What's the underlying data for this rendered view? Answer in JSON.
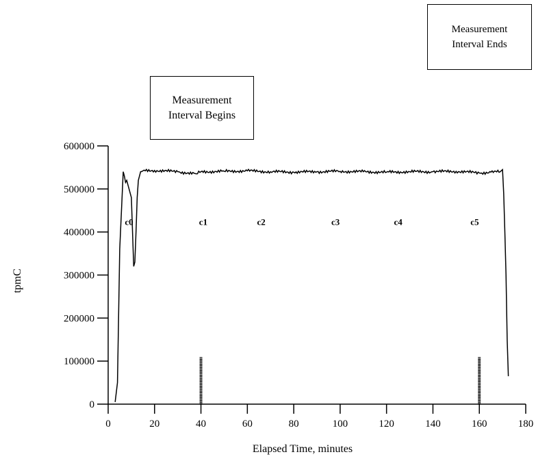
{
  "chart_data": {
    "type": "line",
    "xlabel": "Elapsed Time, minutes",
    "ylabel": "tpmC",
    "xlim": [
      0,
      180
    ],
    "ylim": [
      0,
      600000
    ],
    "x_ticks": [
      "0",
      "20",
      "40",
      "60",
      "80",
      "100",
      "120",
      "140",
      "160",
      "180"
    ],
    "y_ticks": [
      "0",
      "100000",
      "200000",
      "300000",
      "400000",
      "500000",
      "600000"
    ],
    "grid": false,
    "legend": "none",
    "series": [
      {
        "x": [
          3,
          4,
          5,
          6,
          6.5,
          7,
          7.5,
          8,
          8.5,
          9,
          10,
          11,
          11.5,
          12,
          12.5,
          13,
          14,
          15,
          20,
          30,
          38,
          40,
          50,
          60,
          70,
          80,
          90,
          100,
          110,
          120,
          130,
          140,
          150,
          158,
          160,
          165,
          169,
          170,
          170.5,
          171,
          171.5,
          172,
          172.5
        ],
        "y": [
          5000,
          50000,
          360000,
          480000,
          540000,
          530000,
          515000,
          520000,
          510000,
          500000,
          480000,
          320000,
          330000,
          400000,
          480000,
          520000,
          540000,
          542000,
          543000,
          540000,
          535000,
          540000,
          541000,
          542000,
          540000,
          539000,
          540000,
          541000,
          540000,
          539000,
          540000,
          540000,
          541000,
          538000,
          537000,
          539000,
          540000,
          545000,
          490000,
          400000,
          300000,
          150000,
          65000
        ]
      }
    ],
    "checkpoint_labels": [
      {
        "label": "c0",
        "x": 9
      },
      {
        "label": "c1",
        "x": 41
      },
      {
        "label": "c2",
        "x": 66
      },
      {
        "label": "c3",
        "x": 98
      },
      {
        "label": "c4",
        "x": 125
      },
      {
        "label": "c5",
        "x": 158
      }
    ],
    "checkpoint_label_y": 410000,
    "markers": [
      {
        "x": 40,
        "value": 110000
      },
      {
        "x": 160,
        "value": 110000
      }
    ],
    "annotations": {
      "begin": [
        "Measurement",
        "Interval Begins"
      ],
      "end": [
        "Measurement",
        "Interval Ends"
      ]
    }
  }
}
